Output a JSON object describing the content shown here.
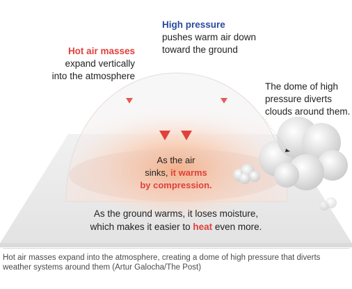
{
  "labels": {
    "high_pressure_title": "High pressure",
    "high_pressure_line1": "pushes warm air down",
    "high_pressure_line2": "toward the ground",
    "hot_air_title": "Hot air masses",
    "hot_air_line1": "expand vertically",
    "hot_air_line2": "into the atmosphere",
    "dome_line1": "The dome of high",
    "dome_line2": "pressure diverts",
    "dome_line3": "clouds around them.",
    "air_line1": "As the air",
    "air_line2_plain": "sinks, ",
    "air_line2_red": "it warms",
    "air_line3_red": "by compression.",
    "ground_line1": "As the ground warms, it loses moisture,",
    "ground_line2_plain": "which makes it easier to ",
    "ground_line2_red": "heat",
    "ground_line2_end": " even more."
  },
  "caption": "Hot air masses expand into the atmosphere, creating a dome of high pressure that diverts weather systems around them (Artur Galocha/The Post)",
  "colors": {
    "accent_red": "#e0403a",
    "accent_blue": "#2a4aa0",
    "text": "#1f1f1f"
  },
  "icons": [
    "down-arrow-icon",
    "cloud-icon"
  ]
}
